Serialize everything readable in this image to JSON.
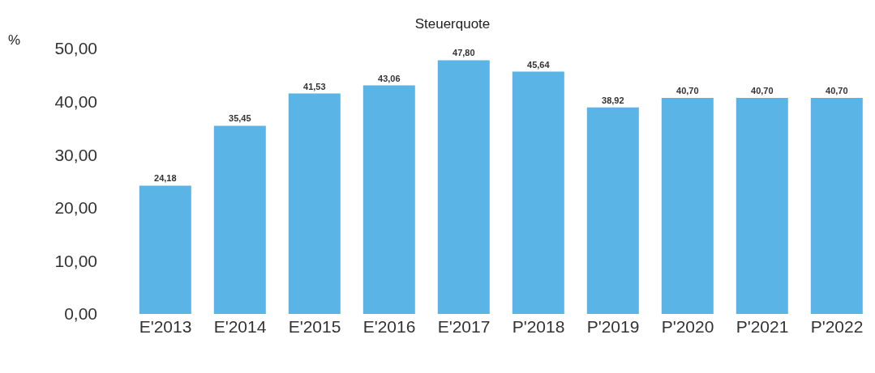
{
  "chart_data": {
    "type": "bar",
    "title": "Steuerquote",
    "ylabel": "%",
    "categories": [
      "E'2013",
      "E'2014",
      "E'2015",
      "E'2016",
      "E'2017",
      "P'2018",
      "P'2019",
      "P'2020",
      "P'2021",
      "P'2022"
    ],
    "values": [
      24.18,
      35.45,
      41.53,
      43.06,
      47.8,
      45.64,
      38.92,
      40.7,
      40.7,
      40.7
    ],
    "value_labels": [
      "24,18",
      "35,45",
      "41,53",
      "43,06",
      "47,80",
      "45,64",
      "38,92",
      "40,70",
      "40,70",
      "40,70"
    ],
    "color": "#5ab4e6",
    "ylim": [
      0,
      50
    ],
    "yticks": [
      {
        "value": 0,
        "label": "0,00"
      },
      {
        "value": 10,
        "label": "10,00"
      },
      {
        "value": 20,
        "label": "20,00"
      },
      {
        "value": 30,
        "label": "30,00"
      },
      {
        "value": 40,
        "label": "40,00"
      },
      {
        "value": 50,
        "label": "50,00"
      }
    ],
    "grid": false
  }
}
